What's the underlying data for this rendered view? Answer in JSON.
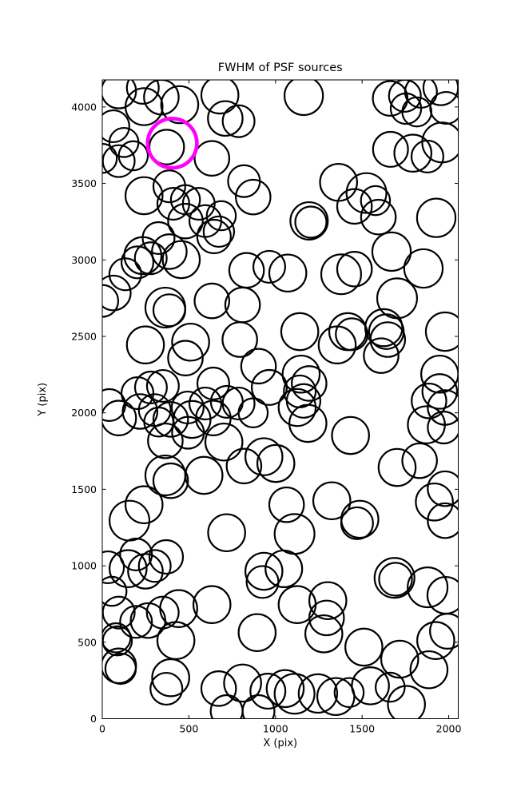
{
  "title": "FWHM of PSF sources",
  "axes": {
    "xlabel": "X (pix)",
    "ylabel": "Y (pix)",
    "xlim": [
      0,
      2055
    ],
    "ylim": [
      0,
      4177
    ],
    "xticks": [
      0,
      500,
      1000,
      1500,
      2000
    ],
    "yticks": [
      0,
      500,
      1000,
      1500,
      2000,
      2500,
      3000,
      3500,
      4000
    ]
  },
  "styles": {
    "background": "#ffffff",
    "circle_color": "#000000",
    "highlight_color": "#ff00ff",
    "axis_color": "#000000"
  },
  "chart_data": {
    "type": "scatter",
    "title": "FWHM of PSF sources",
    "xlabel": "X (pix)",
    "ylabel": "Y (pix)",
    "xlim": [
      0,
      2055
    ],
    "ylim": [
      0,
      4177
    ],
    "grid": false,
    "legend": "none",
    "marker": "open-circle",
    "highlight": {
      "x": 404,
      "y": 3763,
      "r": 142,
      "color": "#ff00ff"
    },
    "points": [
      [
        95,
        4104,
        100
      ],
      [
        234,
        4125,
        92
      ],
      [
        241,
        4002,
        107
      ],
      [
        341,
        4064,
        100
      ],
      [
        447,
        4015,
        107
      ],
      [
        679,
        4078,
        107
      ],
      [
        710,
        3925,
        100
      ],
      [
        787,
        3907,
        92
      ],
      [
        1163,
        4073,
        111
      ],
      [
        1662,
        4056,
        100
      ],
      [
        1747,
        4073,
        92
      ],
      [
        1753,
        3989,
        88
      ],
      [
        1816,
        3968,
        84
      ],
      [
        1840,
        4099,
        92
      ],
      [
        1954,
        4125,
        100
      ],
      [
        1985,
        3994,
        92
      ],
      [
        64,
        3874,
        92
      ],
      [
        125,
        3768,
        84
      ],
      [
        95,
        3646,
        92
      ],
      [
        179,
        3681,
        84
      ],
      [
        0,
        3664,
        84
      ],
      [
        372,
        3738,
        100
      ],
      [
        633,
        3664,
        100
      ],
      [
        818,
        3515,
        92
      ],
      [
        871,
        3411,
        100
      ],
      [
        241,
        3420,
        107
      ],
      [
        387,
        3481,
        92
      ],
      [
        410,
        3367,
        92
      ],
      [
        480,
        3394,
        84
      ],
      [
        557,
        3367,
        92
      ],
      [
        480,
        3254,
        100
      ],
      [
        595,
        3254,
        92
      ],
      [
        687,
        3289,
        84
      ],
      [
        325,
        3143,
        92
      ],
      [
        645,
        3153,
        97
      ],
      [
        673,
        3185,
        88
      ],
      [
        1962,
        3768,
        115
      ],
      [
        1793,
        3698,
        107
      ],
      [
        1877,
        3676,
        92
      ],
      [
        1664,
        3723,
        101
      ],
      [
        1928,
        3275,
        111
      ],
      [
        1577,
        3388,
        84
      ],
      [
        1525,
        3437,
        115
      ],
      [
        1456,
        3350,
        100
      ],
      [
        1594,
        3280,
        100
      ],
      [
        1364,
        3507,
        107
      ],
      [
        1854,
        2944,
        111
      ],
      [
        1670,
        3054,
        111
      ],
      [
        234,
        3028,
        107
      ],
      [
        280,
        3011,
        92
      ],
      [
        203,
        2984,
        92
      ],
      [
        387,
        3054,
        100
      ],
      [
        456,
        3002,
        107
      ],
      [
        133,
        2906,
        92
      ],
      [
        64,
        2784,
        100
      ],
      [
        0,
        2732,
        92
      ],
      [
        364,
        2688,
        115
      ],
      [
        387,
        2671,
        92
      ],
      [
        633,
        2732,
        100
      ],
      [
        833,
        2932,
        100
      ],
      [
        964,
        2955,
        92
      ],
      [
        810,
        2706,
        100
      ],
      [
        1071,
        2914,
        107
      ],
      [
        1379,
        2906,
        115
      ],
      [
        1456,
        2940,
        100
      ],
      [
        1194,
        3255,
        108
      ],
      [
        1204,
        3247,
        90
      ],
      [
        1702,
        2749,
        115
      ],
      [
        794,
        2479,
        100
      ],
      [
        249,
        2444,
        107
      ],
      [
        510,
        2462,
        107
      ],
      [
        480,
        2358,
        100
      ],
      [
        902,
        2305,
        100
      ],
      [
        964,
        2166,
        101
      ],
      [
        641,
        2192,
        92
      ],
      [
        203,
        2129,
        92
      ],
      [
        281,
        2166,
        92
      ],
      [
        350,
        2176,
        92
      ],
      [
        1140,
        2531,
        107
      ],
      [
        1417,
        2531,
        107
      ],
      [
        1440,
        2514,
        92
      ],
      [
        1625,
        2557,
        107
      ],
      [
        1640,
        2531,
        100
      ],
      [
        1648,
        2479,
        100
      ],
      [
        1356,
        2444,
        107
      ],
      [
        1610,
        2374,
        100
      ],
      [
        1979,
        2531,
        111
      ],
      [
        1148,
        2253,
        107
      ],
      [
        1194,
        2192,
        100
      ],
      [
        1140,
        2140,
        92
      ],
      [
        1948,
        2253,
        107
      ],
      [
        1948,
        2140,
        100
      ],
      [
        41,
        2051,
        92
      ],
      [
        95,
        1966,
        100
      ],
      [
        218,
        2009,
        100
      ],
      [
        303,
        2018,
        92
      ],
      [
        395,
        1957,
        100
      ],
      [
        326,
        1940,
        84
      ],
      [
        518,
        1957,
        107
      ],
      [
        641,
        1966,
        100
      ],
      [
        719,
        2072,
        92
      ],
      [
        787,
        2061,
        92
      ],
      [
        595,
        2061,
        92
      ],
      [
        493,
        2035,
        92
      ],
      [
        871,
        2000,
        84
      ],
      [
        1125,
        2035,
        107
      ],
      [
        1162,
        2078,
        97
      ],
      [
        1187,
        1931,
        107
      ],
      [
        1871,
        1922,
        107
      ],
      [
        1886,
        2078,
        100
      ],
      [
        1979,
        2035,
        100
      ],
      [
        1971,
        1904,
        92
      ],
      [
        702,
        1809,
        107
      ],
      [
        364,
        1817,
        100
      ],
      [
        495,
        1870,
        92
      ],
      [
        933,
        1713,
        107
      ],
      [
        818,
        1652,
        100
      ],
      [
        1433,
        1852,
        107
      ],
      [
        1002,
        1669,
        107
      ],
      [
        1702,
        1643,
        107
      ],
      [
        1832,
        1687,
        100
      ],
      [
        364,
        1591,
        115
      ],
      [
        395,
        1556,
        100
      ],
      [
        587,
        1591,
        107
      ],
      [
        241,
        1399,
        107
      ],
      [
        157,
        1295,
        115
      ],
      [
        718,
        1216,
        107
      ],
      [
        1064,
        1399,
        100
      ],
      [
        1325,
        1425,
        107
      ],
      [
        1487,
        1304,
        107
      ],
      [
        1471,
        1278,
        92
      ],
      [
        1110,
        1208,
        115
      ],
      [
        1917,
        1417,
        107
      ],
      [
        1979,
        1504,
        100
      ],
      [
        1979,
        1295,
        100
      ],
      [
        369,
        1058,
        97
      ],
      [
        195,
        1074,
        92
      ],
      [
        33,
        990,
        92
      ],
      [
        149,
        981,
        107
      ],
      [
        249,
        964,
        100
      ],
      [
        303,
        999,
        92
      ],
      [
        933,
        964,
        107
      ],
      [
        925,
        894,
        92
      ],
      [
        1048,
        980,
        106
      ],
      [
        1687,
        921,
        115
      ],
      [
        1693,
        912,
        95
      ],
      [
        1878,
        859,
        115
      ],
      [
        1983,
        807,
        106
      ],
      [
        56,
        833,
        84
      ],
      [
        95,
        694,
        92
      ],
      [
        195,
        633,
        92
      ],
      [
        264,
        642,
        100
      ],
      [
        349,
        694,
        92
      ],
      [
        441,
        720,
        107
      ],
      [
        633,
        746,
        107
      ],
      [
        1125,
        746,
        107
      ],
      [
        1302,
        772,
        107
      ],
      [
        1295,
        659,
        100
      ],
      [
        1279,
        555,
        107
      ],
      [
        894,
        563,
        107
      ],
      [
        425,
        511,
        107
      ],
      [
        79,
        529,
        84
      ],
      [
        87,
        509,
        84
      ],
      [
        1510,
        468,
        107
      ],
      [
        1717,
        389,
        107
      ],
      [
        1925,
        511,
        107
      ],
      [
        1886,
        320,
        107
      ],
      [
        1993,
        572,
        101
      ],
      [
        95,
        346,
        100
      ],
      [
        106,
        327,
        88
      ],
      [
        395,
        268,
        107
      ],
      [
        672,
        197,
        100
      ],
      [
        810,
        233,
        107
      ],
      [
        956,
        180,
        101
      ],
      [
        370,
        196,
        92
      ],
      [
        1056,
        197,
        107
      ],
      [
        1110,
        163,
        115
      ],
      [
        1245,
        165,
        111
      ],
      [
        1348,
        145,
        107
      ],
      [
        1425,
        171,
        84
      ],
      [
        1548,
        215,
        107
      ],
      [
        1662,
        206,
        84
      ],
      [
        1756,
        93,
        107
      ],
      [
        718,
        50,
        92
      ],
      [
        902,
        50,
        92
      ]
    ]
  }
}
